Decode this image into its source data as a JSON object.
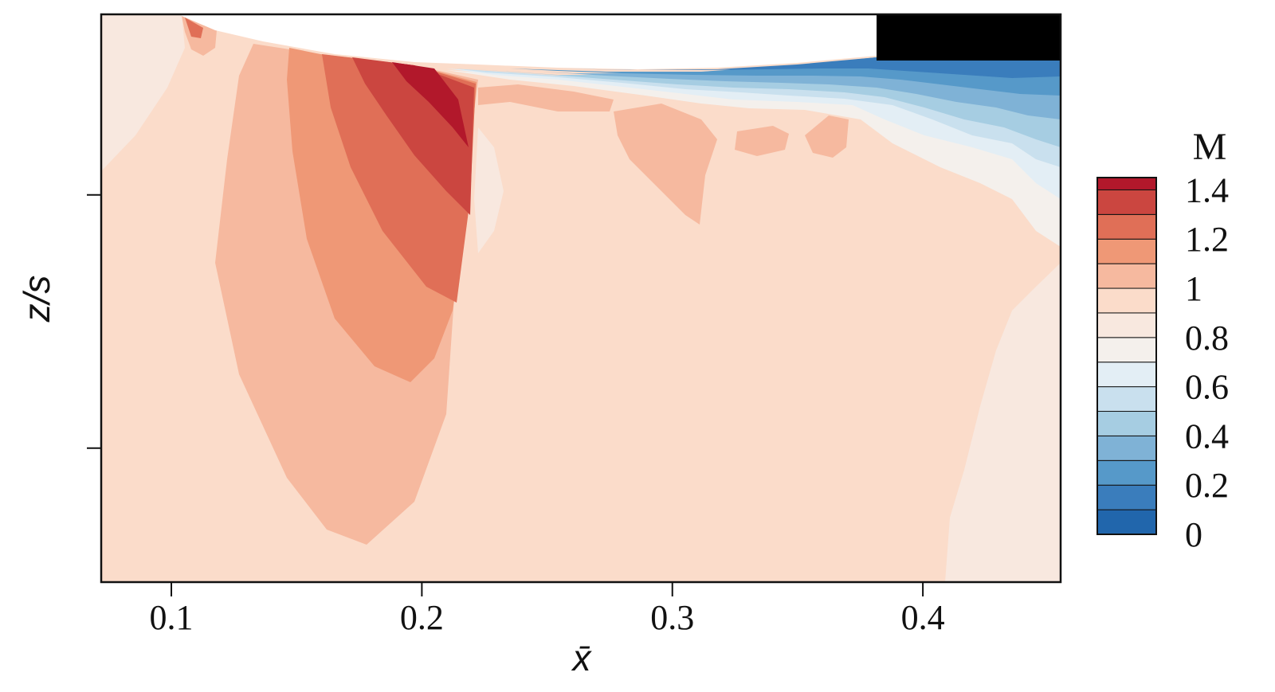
{
  "chart_data": {
    "type": "heatmap",
    "title": "",
    "xlabel": "x̄",
    "ylabel": "z/s",
    "xlim": [
      0.072,
      0.455
    ],
    "x_ticks": [
      "0.1",
      "0.2",
      "0.3",
      "0.4"
    ],
    "x_tick_values": [
      0.1,
      0.2,
      0.3,
      0.4
    ],
    "y_ticks": [
      "",
      ""
    ],
    "colorbar": {
      "title": "M",
      "range": [
        0,
        1.45
      ],
      "tick_labels": [
        "1.4",
        "1.2",
        "1",
        "0.8",
        "0.6",
        "0.4",
        "0.2",
        "0"
      ],
      "tick_values": [
        1.4,
        1.2,
        1.0,
        0.8,
        0.6,
        0.4,
        0.2,
        0.0
      ],
      "levels": [
        0.0,
        0.1,
        0.2,
        0.3,
        0.4,
        0.5,
        0.6,
        0.7,
        0.8,
        0.9,
        1.0,
        1.1,
        1.2,
        1.3,
        1.4
      ],
      "colors": [
        "#2166ac",
        "#3a7dbc",
        "#5699c9",
        "#7fb2d6",
        "#a6cde2",
        "#c9e0ee",
        "#e3eef5",
        "#f4f0ec",
        "#f8e8df",
        "#fbdcca",
        "#f6b99f",
        "#ef9876",
        "#e06f57",
        "#cb4640",
        "#b2182b"
      ]
    },
    "region_colors": {
      "background": "#fbdcca",
      "body": "#000000"
    }
  }
}
